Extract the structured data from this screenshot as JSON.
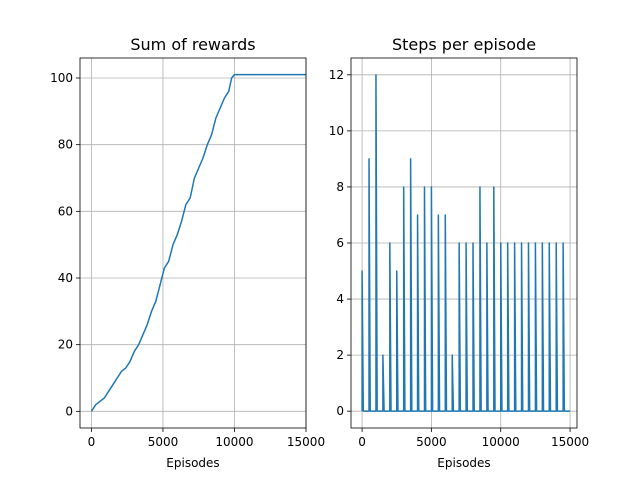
{
  "chart_data": [
    {
      "type": "line",
      "title": "Sum of rewards",
      "xlabel": "Episodes",
      "ylabel": "",
      "xlim": [
        -800,
        15000
      ],
      "ylim": [
        -5,
        106
      ],
      "xticks": [
        0,
        5000,
        10000,
        15000
      ],
      "yticks": [
        0,
        20,
        40,
        60,
        80,
        100
      ],
      "grid": true,
      "color": "#1f77b4",
      "series": [
        {
          "x": [
            0,
            300,
            600,
            900,
            1200,
            1500,
            1800,
            2100,
            2400,
            2700,
            3000,
            3300,
            3600,
            3900,
            4200,
            4500,
            4800,
            5100,
            5400,
            5700,
            6000,
            6300,
            6600,
            6900,
            7200,
            7500,
            7800,
            8100,
            8400,
            8700,
            9000,
            9300,
            9600,
            9800,
            10000,
            15000
          ],
          "y": [
            0,
            2,
            3,
            4,
            6,
            8,
            10,
            12,
            13,
            15,
            18,
            20,
            23,
            26,
            30,
            33,
            38,
            43,
            45,
            50,
            53,
            57,
            62,
            64,
            70,
            73,
            76,
            80,
            83,
            88,
            91,
            94,
            96,
            100,
            101,
            101
          ]
        }
      ]
    },
    {
      "type": "line",
      "title": "Steps per episode",
      "xlabel": "Episodes",
      "ylabel": "",
      "xlim": [
        -800,
        15500
      ],
      "ylim": [
        -0.6,
        12.6
      ],
      "xticks": [
        0,
        5000,
        10000,
        15000
      ],
      "yticks": [
        0,
        2,
        4,
        6,
        8,
        10,
        12
      ],
      "grid": true,
      "color": "#1f77b4",
      "series": [
        {
          "spikes": [
            [
              0,
              5
            ],
            [
              500,
              9
            ],
            [
              1000,
              12
            ],
            [
              1500,
              2
            ],
            [
              2000,
              6
            ],
            [
              2500,
              5
            ],
            [
              3000,
              8
            ],
            [
              3500,
              9
            ],
            [
              4000,
              7
            ],
            [
              4500,
              8
            ],
            [
              5000,
              8
            ],
            [
              5500,
              7
            ],
            [
              6000,
              7
            ],
            [
              6500,
              2
            ],
            [
              7000,
              6
            ],
            [
              7500,
              6
            ],
            [
              8000,
              6
            ],
            [
              8500,
              8
            ],
            [
              9000,
              6
            ],
            [
              9500,
              8
            ],
            [
              10000,
              6
            ],
            [
              10500,
              6
            ],
            [
              11000,
              6
            ],
            [
              11500,
              6
            ],
            [
              12000,
              6
            ],
            [
              12500,
              6
            ],
            [
              13000,
              6
            ],
            [
              13500,
              6
            ],
            [
              14000,
              6
            ],
            [
              14500,
              6
            ]
          ],
          "baseline": 0,
          "x_end": 15000
        }
      ]
    }
  ]
}
